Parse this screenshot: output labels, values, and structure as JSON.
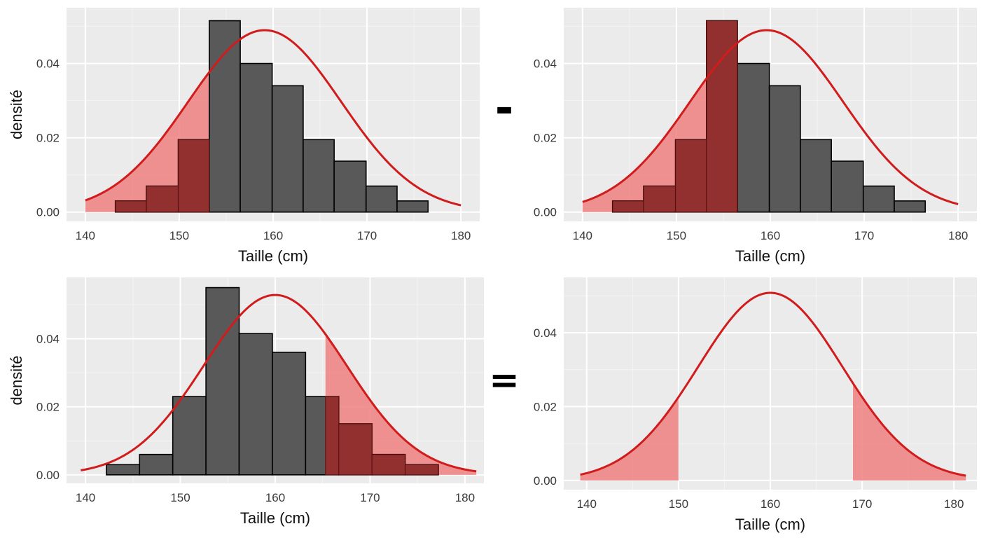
{
  "colors": {
    "panel_background": "#EBEBEB",
    "grid_major": "#FFFFFF",
    "grid_minor": "#F4F4F4",
    "bar_fill": "#595959",
    "bar_stroke": "#000000",
    "curve": "#D01C1C",
    "area_fill": "#F08080",
    "bar_highlight_fill": "#9A2A2A"
  },
  "operators": {
    "minus": "-",
    "equals": "="
  },
  "chart_data": [
    {
      "type": "histogram+density",
      "xlabel": "Taille (cm)",
      "ylabel": "densité",
      "xlim": [
        138,
        182
      ],
      "ylim": [
        -0.0025,
        0.055
      ],
      "xticks": [
        140,
        150,
        160,
        170,
        180
      ],
      "yticks": [
        0.0,
        0.02,
        0.04
      ],
      "ytick_labels": [
        "0.00",
        "0.02",
        "0.04"
      ],
      "show_yticks": true,
      "grid": true,
      "bins": [
        {
          "x0": 143.2,
          "x1": 146.5,
          "density": 0.003
        },
        {
          "x0": 146.5,
          "x1": 149.9,
          "density": 0.007
        },
        {
          "x0": 149.9,
          "x1": 153.2,
          "density": 0.0195
        },
        {
          "x0": 153.2,
          "x1": 156.5,
          "density": 0.0515
        },
        {
          "x0": 156.5,
          "x1": 159.9,
          "density": 0.04
        },
        {
          "x0": 159.9,
          "x1": 163.2,
          "density": 0.034
        },
        {
          "x0": 163.2,
          "x1": 166.5,
          "density": 0.0195
        },
        {
          "x0": 166.5,
          "x1": 169.9,
          "density": 0.0137
        },
        {
          "x0": 169.9,
          "x1": 173.2,
          "density": 0.007
        },
        {
          "x0": 173.2,
          "x1": 176.5,
          "density": 0.003
        }
      ],
      "curve": {
        "mean": 159.1,
        "sd": 8.15,
        "x_from": 140,
        "x_to": 180
      },
      "shaded_ranges": [
        [
          140,
          153.2
        ]
      ]
    },
    {
      "type": "histogram+density",
      "xlabel": "Taille (cm)",
      "ylabel": "",
      "xlim": [
        138,
        182
      ],
      "ylim": [
        -0.0025,
        0.055
      ],
      "xticks": [
        140,
        150,
        160,
        170,
        180
      ],
      "yticks": [
        0.0,
        0.02,
        0.04
      ],
      "ytick_labels": [
        "0.00",
        "0.02",
        "0.04"
      ],
      "show_yticks": true,
      "grid": true,
      "bins": [
        {
          "x0": 143.2,
          "x1": 146.5,
          "density": 0.003
        },
        {
          "x0": 146.5,
          "x1": 149.9,
          "density": 0.007
        },
        {
          "x0": 149.9,
          "x1": 153.2,
          "density": 0.0195
        },
        {
          "x0": 153.2,
          "x1": 156.5,
          "density": 0.0515
        },
        {
          "x0": 156.5,
          "x1": 159.9,
          "density": 0.04
        },
        {
          "x0": 159.9,
          "x1": 163.2,
          "density": 0.034
        },
        {
          "x0": 163.2,
          "x1": 166.5,
          "density": 0.0195
        },
        {
          "x0": 166.5,
          "x1": 169.9,
          "density": 0.0137
        },
        {
          "x0": 169.9,
          "x1": 173.2,
          "density": 0.007
        },
        {
          "x0": 173.2,
          "x1": 176.5,
          "density": 0.003
        }
      ],
      "curve": {
        "mean": 159.6,
        "sd": 8.15,
        "x_from": 140,
        "x_to": 180
      },
      "shaded_ranges": [
        [
          140,
          156.5
        ]
      ]
    },
    {
      "type": "histogram+density",
      "xlabel": "Taille (cm)",
      "ylabel": "densité",
      "xlim": [
        138,
        182
      ],
      "ylim": [
        -0.0025,
        0.058
      ],
      "xticks": [
        140,
        150,
        160,
        170,
        180
      ],
      "yticks": [
        0.0,
        0.02,
        0.04
      ],
      "ytick_labels": [
        "0.00",
        "0.02",
        "0.04"
      ],
      "show_yticks": true,
      "grid": true,
      "bins": [
        {
          "x0": 142.2,
          "x1": 145.7,
          "density": 0.003
        },
        {
          "x0": 145.7,
          "x1": 149.2,
          "density": 0.006
        },
        {
          "x0": 149.2,
          "x1": 152.7,
          "density": 0.023
        },
        {
          "x0": 152.7,
          "x1": 156.2,
          "density": 0.055
        },
        {
          "x0": 156.2,
          "x1": 159.7,
          "density": 0.0415
        },
        {
          "x0": 159.7,
          "x1": 163.2,
          "density": 0.036
        },
        {
          "x0": 163.2,
          "x1": 166.7,
          "density": 0.023
        },
        {
          "x0": 166.7,
          "x1": 170.2,
          "density": 0.015
        },
        {
          "x0": 170.2,
          "x1": 173.7,
          "density": 0.006
        },
        {
          "x0": 173.7,
          "x1": 177.2,
          "density": 0.003
        }
      ],
      "curve": {
        "mean": 160.0,
        "sd": 7.55,
        "x_from": 139.5,
        "x_to": 181.2
      },
      "shaded_ranges": [
        [
          165.3,
          181.2
        ]
      ]
    },
    {
      "type": "density",
      "xlabel": "Taille (cm)",
      "ylabel": "",
      "xlim": [
        137.5,
        182.5
      ],
      "ylim": [
        -0.0025,
        0.055
      ],
      "xticks": [
        140,
        150,
        160,
        170,
        180
      ],
      "yticks": [
        0.0,
        0.02,
        0.04
      ],
      "ytick_labels": [
        "0.00",
        "0.02",
        "0.04"
      ],
      "show_yticks": true,
      "grid": true,
      "bins": [],
      "curve": {
        "mean": 160.0,
        "sd": 7.85,
        "x_from": 139.3,
        "x_to": 181.3
      },
      "shaded_ranges": [
        [
          139.3,
          150
        ],
        [
          169,
          181.3
        ]
      ]
    }
  ]
}
